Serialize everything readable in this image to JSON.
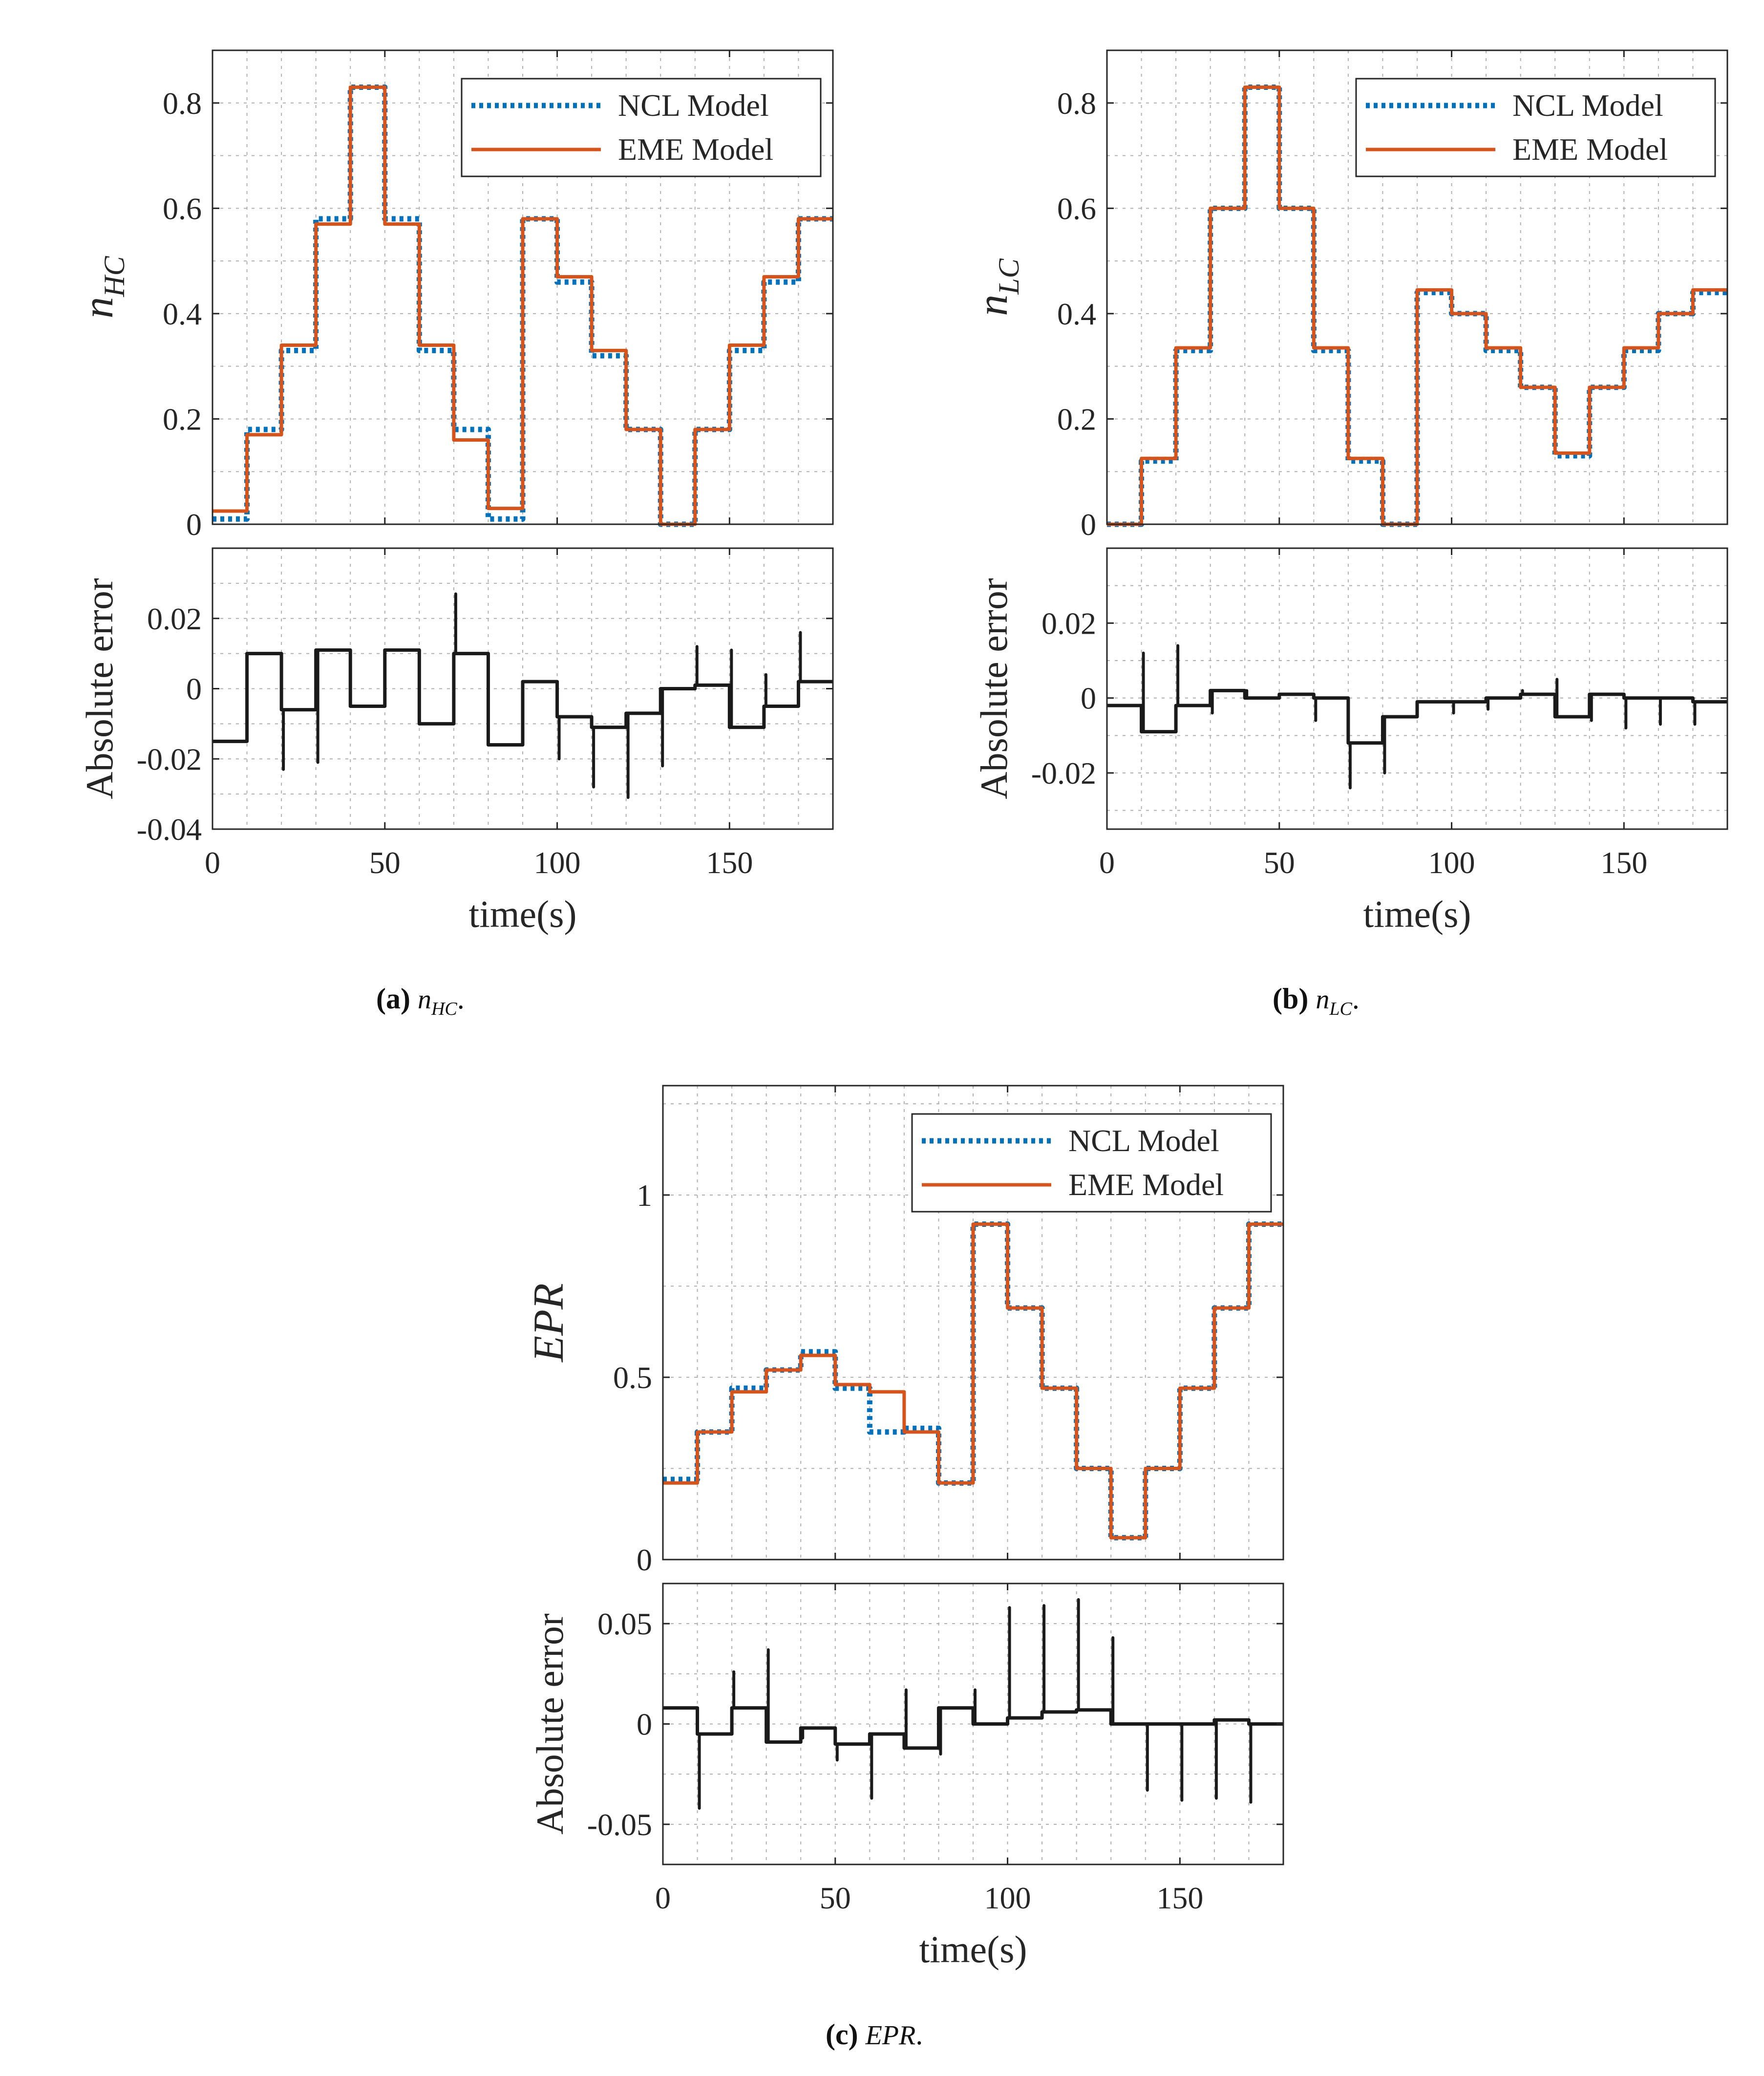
{
  "figure": {
    "captions": [
      {
        "letter": "(a)",
        "symbol": "n",
        "sub": "HC",
        "suffix": "."
      },
      {
        "letter": "(b)",
        "symbol": "n",
        "sub": "LC",
        "suffix": "."
      },
      {
        "letter": "(c)",
        "symbol": "EPR",
        "sub": "",
        "suffix": "."
      }
    ]
  },
  "colors": {
    "ncl": "#0072BD",
    "eme": "#D95319",
    "error": "#1a1a1a",
    "grid": "#b0b0b0",
    "axis": "#262626"
  },
  "chart_data": [
    {
      "id": "a-top",
      "type": "line",
      "ylabel": "n",
      "ylabel_sub": "HC",
      "xlim": [
        0,
        180
      ],
      "ylim": [
        0,
        0.9
      ],
      "yticks": [
        0,
        0.2,
        0.4,
        0.6,
        0.8
      ],
      "ytick_labels": [
        "0",
        "0.2",
        "0.4",
        "0.6",
        "0.8"
      ],
      "xticks": [
        0,
        50,
        100,
        150
      ],
      "grid": true,
      "legend_position": "top-right",
      "legend": [
        "NCL Model",
        "EME Model"
      ],
      "series": [
        {
          "name": "NCL Model",
          "style": "dotted",
          "x": [
            0,
            10,
            20,
            30,
            40,
            50,
            60,
            70,
            80,
            90,
            100,
            110,
            120,
            130,
            140,
            150,
            160,
            170,
            180
          ],
          "values": [
            0.01,
            0.18,
            0.33,
            0.58,
            0.83,
            0.58,
            0.33,
            0.18,
            0.01,
            0.58,
            0.46,
            0.32,
            0.18,
            0.0,
            0.18,
            0.33,
            0.46,
            0.58,
            0.58
          ]
        },
        {
          "name": "EME Model",
          "style": "solid",
          "x": [
            0,
            10,
            20,
            30,
            40,
            50,
            60,
            70,
            80,
            90,
            100,
            110,
            120,
            130,
            140,
            150,
            160,
            170,
            180
          ],
          "values": [
            0.025,
            0.17,
            0.34,
            0.57,
            0.83,
            0.57,
            0.34,
            0.16,
            0.03,
            0.58,
            0.47,
            0.33,
            0.18,
            0.0,
            0.18,
            0.34,
            0.47,
            0.58,
            0.58
          ]
        }
      ]
    },
    {
      "id": "a-bottom",
      "type": "line",
      "ylabel": "Absolute error",
      "xlabel": "time(s)",
      "xlim": [
        0,
        180
      ],
      "ylim": [
        -0.04,
        0.04
      ],
      "yticks": [
        -0.04,
        -0.02,
        0,
        0.02
      ],
      "ytick_labels": [
        "-0.04",
        "-0.02",
        "0",
        "0.02"
      ],
      "xticks": [
        0,
        50,
        100,
        150
      ],
      "xtick_labels": [
        "0",
        "50",
        "100",
        "150"
      ],
      "grid": true,
      "series": [
        {
          "name": "Absolute error",
          "x": [
            0,
            10,
            20,
            30,
            40,
            50,
            60,
            70,
            80,
            90,
            100,
            110,
            120,
            130,
            140,
            150,
            160,
            170,
            180
          ],
          "values": [
            -0.015,
            0.01,
            -0.006,
            0.011,
            -0.005,
            0.011,
            -0.01,
            0.01,
            -0.016,
            0.002,
            -0.008,
            -0.011,
            -0.007,
            0.0,
            0.001,
            -0.011,
            -0.005,
            0.002,
            0.002
          ],
          "spikes": [
            0,
            0,
            -0.023,
            -0.021,
            0,
            0,
            0,
            0.027,
            0,
            0,
            -0.02,
            -0.028,
            -0.031,
            -0.022,
            0.012,
            0.011,
            0.004,
            0.016,
            0
          ]
        }
      ]
    },
    {
      "id": "b-top",
      "type": "line",
      "ylabel": "n",
      "ylabel_sub": "LC",
      "xlim": [
        0,
        180
      ],
      "ylim": [
        0,
        0.9
      ],
      "yticks": [
        0,
        0.2,
        0.4,
        0.6,
        0.8
      ],
      "ytick_labels": [
        "0",
        "0.2",
        "0.4",
        "0.6",
        "0.8"
      ],
      "xticks": [
        0,
        50,
        100,
        150
      ],
      "grid": true,
      "legend_position": "top-right",
      "legend": [
        "NCL Model",
        "EME Model"
      ],
      "series": [
        {
          "name": "NCL Model",
          "style": "dotted",
          "x": [
            0,
            10,
            20,
            30,
            40,
            50,
            60,
            70,
            80,
            90,
            100,
            110,
            120,
            130,
            140,
            150,
            160,
            170,
            180
          ],
          "values": [
            0.0,
            0.12,
            0.33,
            0.6,
            0.83,
            0.6,
            0.33,
            0.12,
            0.0,
            0.44,
            0.4,
            0.33,
            0.26,
            0.13,
            0.26,
            0.33,
            0.4,
            0.44,
            0.44
          ]
        },
        {
          "name": "EME Model",
          "style": "solid",
          "x": [
            0,
            10,
            20,
            30,
            40,
            50,
            60,
            70,
            80,
            90,
            100,
            110,
            120,
            130,
            140,
            150,
            160,
            170,
            180
          ],
          "values": [
            0.0,
            0.125,
            0.335,
            0.6,
            0.83,
            0.6,
            0.335,
            0.125,
            0.0,
            0.445,
            0.4,
            0.335,
            0.26,
            0.135,
            0.26,
            0.335,
            0.4,
            0.445,
            0.445
          ]
        }
      ]
    },
    {
      "id": "b-bottom",
      "type": "line",
      "ylabel": "Absolute error",
      "xlabel": "time(s)",
      "xlim": [
        0,
        180
      ],
      "ylim": [
        -0.035,
        0.04
      ],
      "yticks": [
        -0.02,
        0,
        0.02
      ],
      "ytick_labels": [
        "-0.02",
        "0",
        "0.02"
      ],
      "xticks": [
        0,
        50,
        100,
        150
      ],
      "xtick_labels": [
        "0",
        "50",
        "100",
        "150"
      ],
      "grid": true,
      "series": [
        {
          "name": "Absolute error",
          "x": [
            0,
            10,
            20,
            30,
            40,
            50,
            60,
            70,
            80,
            90,
            100,
            110,
            120,
            130,
            140,
            150,
            160,
            170,
            180
          ],
          "values": [
            -0.002,
            -0.009,
            -0.002,
            0.002,
            0.0,
            0.001,
            0.0,
            -0.012,
            -0.005,
            -0.001,
            -0.001,
            0.0,
            0.001,
            -0.005,
            0.001,
            0.0,
            0.0,
            -0.001,
            -0.001
          ],
          "spikes": [
            0,
            0.012,
            0.014,
            -0.004,
            0.002,
            0,
            -0.006,
            -0.024,
            -0.02,
            0,
            -0.004,
            -0.003,
            0.002,
            0.005,
            -0.006,
            -0.008,
            -0.007,
            -0.007,
            0
          ]
        }
      ]
    },
    {
      "id": "c-top",
      "type": "line",
      "ylabel": "EPR",
      "xlim": [
        0,
        180
      ],
      "ylim": [
        0,
        1.3
      ],
      "yticks": [
        0,
        0.5,
        1
      ],
      "ytick_labels": [
        "0",
        "0.5",
        "1"
      ],
      "xticks": [
        0,
        50,
        100,
        150
      ],
      "grid": true,
      "legend_position": "top-right",
      "legend": [
        "NCL Model",
        "EME Model"
      ],
      "series": [
        {
          "name": "NCL Model",
          "style": "dotted",
          "x": [
            0,
            10,
            20,
            30,
            40,
            50,
            60,
            70,
            80,
            90,
            100,
            110,
            120,
            130,
            140,
            150,
            160,
            170,
            180
          ],
          "values": [
            0.22,
            0.35,
            0.47,
            0.52,
            0.57,
            0.47,
            0.35,
            0.36,
            0.21,
            0.92,
            0.69,
            0.47,
            0.25,
            0.06,
            0.25,
            0.47,
            0.69,
            0.92,
            0.92
          ]
        },
        {
          "name": "EME Model",
          "style": "solid",
          "x": [
            0,
            10,
            20,
            30,
            40,
            50,
            60,
            70,
            80,
            90,
            100,
            110,
            120,
            130,
            140,
            150,
            160,
            170,
            180
          ],
          "values": [
            0.21,
            0.35,
            0.46,
            0.52,
            0.56,
            0.48,
            0.46,
            0.35,
            0.21,
            0.92,
            0.69,
            0.47,
            0.25,
            0.06,
            0.25,
            0.47,
            0.69,
            0.92,
            0.92
          ]
        }
      ]
    },
    {
      "id": "c-bottom",
      "type": "line",
      "ylabel": "Absolute error",
      "xlabel": "time(s)",
      "xlim": [
        0,
        180
      ],
      "ylim": [
        -0.07,
        0.07
      ],
      "yticks": [
        -0.05,
        0,
        0.05
      ],
      "ytick_labels": [
        "-0.05",
        "0",
        "0.05"
      ],
      "xticks": [
        0,
        50,
        100,
        150
      ],
      "xtick_labels": [
        "0",
        "50",
        "100",
        "150"
      ],
      "grid": true,
      "series": [
        {
          "name": "Absolute error",
          "x": [
            0,
            10,
            20,
            30,
            40,
            50,
            60,
            70,
            80,
            90,
            100,
            110,
            120,
            130,
            140,
            150,
            160,
            170,
            180
          ],
          "values": [
            0.008,
            -0.005,
            0.008,
            -0.009,
            -0.002,
            -0.01,
            -0.005,
            -0.012,
            0.008,
            0.0,
            0.003,
            0.006,
            0.007,
            0.0,
            0.0,
            0.0,
            0.002,
            0.0,
            0.0
          ],
          "spikes": [
            0,
            -0.042,
            0.026,
            0.037,
            -0.007,
            -0.018,
            -0.037,
            0.017,
            -0.015,
            0.017,
            0.058,
            0.059,
            0.062,
            0.043,
            -0.033,
            -0.038,
            -0.037,
            -0.039,
            0
          ]
        }
      ]
    }
  ]
}
